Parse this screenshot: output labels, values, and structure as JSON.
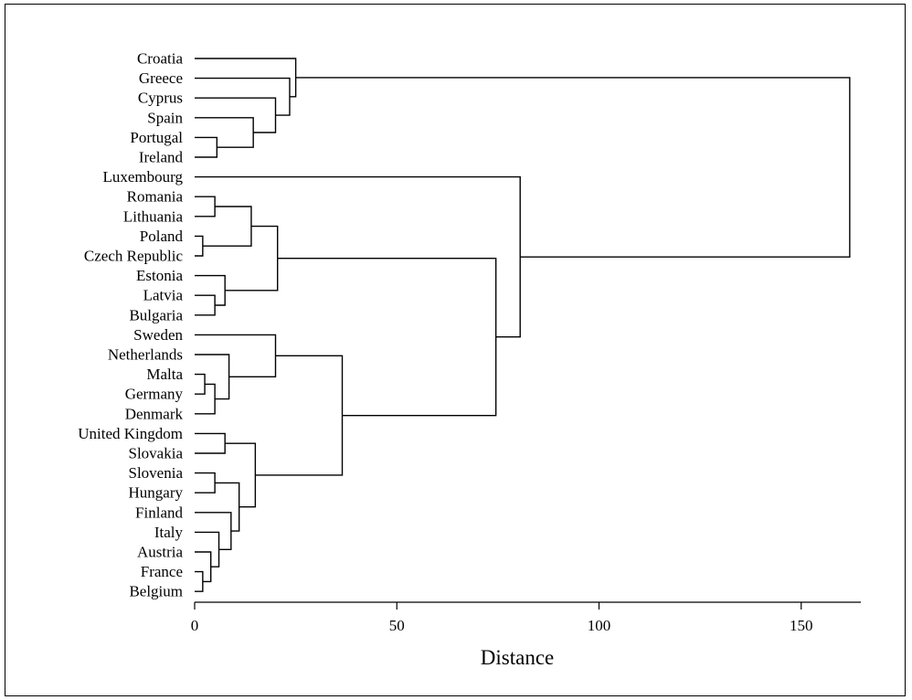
{
  "chart_data": {
    "type": "dendrogram",
    "orientation": "horizontal",
    "xlabel": "Distance",
    "xlim": [
      0,
      165
    ],
    "xticks": [
      0,
      50,
      100,
      150
    ],
    "grid": false,
    "leaves": [
      "Croatia",
      "Greece",
      "Cyprus",
      "Spain",
      "Portugal",
      "Ireland",
      "Luxembourg",
      "Romania",
      "Lithuania",
      "Poland",
      "Czech Republic",
      "Estonia",
      "Latvia",
      "Bulgaria",
      "Sweden",
      "Netherlands",
      "Malta",
      "Germany",
      "Denmark",
      "United Kingdom",
      "Slovakia",
      "Slovenia",
      "Hungary",
      "Finland",
      "Italy",
      "Austria",
      "France",
      "Belgium"
    ],
    "merges": [
      {
        "id": "C1",
        "children": [
          "Portugal",
          "Ireland"
        ],
        "distance": 5.5
      },
      {
        "id": "C2",
        "children": [
          "Spain",
          "C1"
        ],
        "distance": 14.5
      },
      {
        "id": "C3",
        "children": [
          "Cyprus",
          "C2"
        ],
        "distance": 20
      },
      {
        "id": "C4",
        "children": [
          "Greece",
          "C3"
        ],
        "distance": 23.5
      },
      {
        "id": "C5",
        "children": [
          "Croatia",
          "C4"
        ],
        "distance": 25
      },
      {
        "id": "C6",
        "children": [
          "Romania",
          "Lithuania"
        ],
        "distance": 5
      },
      {
        "id": "C7",
        "children": [
          "Poland",
          "Czech Republic"
        ],
        "distance": 2
      },
      {
        "id": "C8",
        "children": [
          "C6",
          "C7"
        ],
        "distance": 14
      },
      {
        "id": "C9",
        "children": [
          "Latvia",
          "Bulgaria"
        ],
        "distance": 5
      },
      {
        "id": "C10",
        "children": [
          "Estonia",
          "C9"
        ],
        "distance": 7.5
      },
      {
        "id": "C11",
        "children": [
          "C8",
          "C10"
        ],
        "distance": 20.5
      },
      {
        "id": "C12",
        "children": [
          "Malta",
          "Germany"
        ],
        "distance": 2.5
      },
      {
        "id": "C13",
        "children": [
          "C12",
          "Denmark"
        ],
        "distance": 5
      },
      {
        "id": "C14",
        "children": [
          "Netherlands",
          "C13"
        ],
        "distance": 8.5
      },
      {
        "id": "C15",
        "children": [
          "Sweden",
          "C14"
        ],
        "distance": 20
      },
      {
        "id": "C16",
        "children": [
          "United Kingdom",
          "Slovakia"
        ],
        "distance": 7.5
      },
      {
        "id": "C17",
        "children": [
          "Slovenia",
          "Hungary"
        ],
        "distance": 5
      },
      {
        "id": "C18",
        "children": [
          "France",
          "Belgium"
        ],
        "distance": 2
      },
      {
        "id": "C19",
        "children": [
          "Austria",
          "C18"
        ],
        "distance": 4
      },
      {
        "id": "C20",
        "children": [
          "Italy",
          "C19"
        ],
        "distance": 6
      },
      {
        "id": "C21",
        "children": [
          "Finland",
          "C20"
        ],
        "distance": 9
      },
      {
        "id": "C22",
        "children": [
          "C17",
          "C21"
        ],
        "distance": 11
      },
      {
        "id": "C23",
        "children": [
          "C16",
          "C22"
        ],
        "distance": 15
      },
      {
        "id": "C24",
        "children": [
          "C15",
          "C23"
        ],
        "distance": 36.5
      },
      {
        "id": "C25",
        "children": [
          "C11",
          "C24"
        ],
        "distance": 74.5
      },
      {
        "id": "C26",
        "children": [
          "Luxembourg",
          "C25"
        ],
        "distance": 80.5
      },
      {
        "id": "C27",
        "children": [
          "C5",
          "C26"
        ],
        "distance": 162
      }
    ]
  }
}
